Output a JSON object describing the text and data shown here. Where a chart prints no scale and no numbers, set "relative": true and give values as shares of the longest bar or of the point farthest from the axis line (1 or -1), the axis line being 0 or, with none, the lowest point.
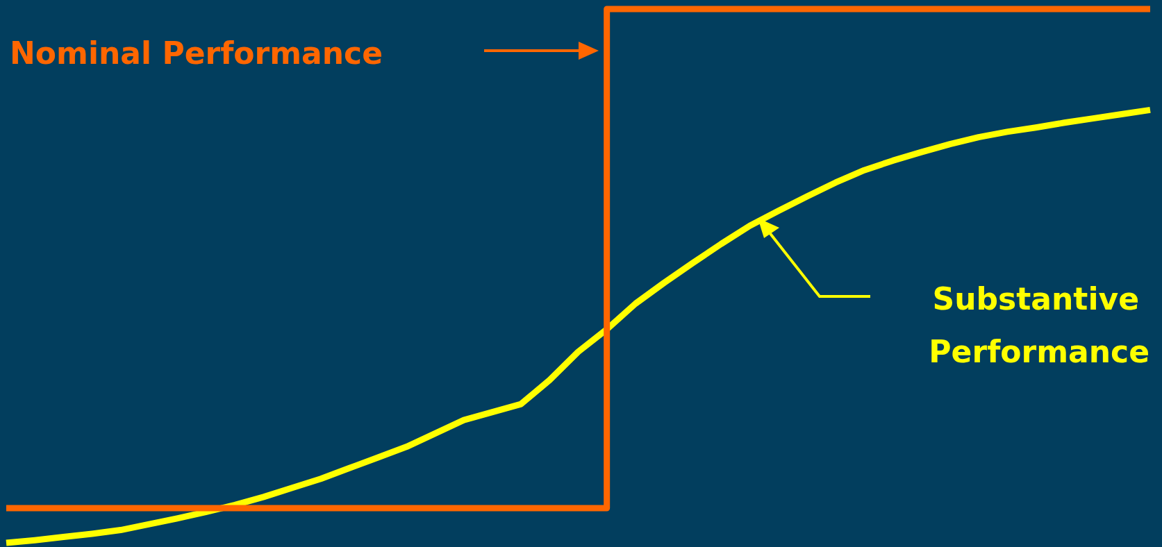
{
  "chart_data": {
    "type": "line",
    "relative": true,
    "legend": false,
    "marker": "none",
    "categories": [
      null,
      null,
      null,
      null,
      null,
      null,
      null,
      null,
      null,
      null,
      null,
      null,
      null,
      null,
      null,
      null,
      null,
      null,
      null,
      null,
      null,
      null,
      null,
      null,
      null,
      null,
      null,
      null,
      null,
      null,
      null,
      null,
      null,
      null,
      null,
      null,
      null,
      null,
      null,
      null,
      null
    ],
    "series": [
      {
        "name": "Nominal Performance",
        "type": "step",
        "color": "#ff6600",
        "values": [
          0.065,
          0.065,
          0.065,
          0.065,
          0.065,
          0.065,
          0.065,
          0.065,
          0.065,
          0.065,
          0.065,
          0.065,
          0.065,
          0.065,
          0.065,
          0.065,
          0.065,
          0.065,
          0.065,
          0.065,
          0.065,
          0.065,
          1,
          1,
          1,
          1,
          1,
          1,
          1,
          1,
          1,
          1,
          1,
          1,
          1,
          1,
          1,
          1,
          1,
          1,
          1
        ]
      },
      {
        "name": "Substantive Performance",
        "color": "#ffff00",
        "values": [
          0,
          0.005,
          0.011,
          0.017,
          0.024,
          0.035,
          0.046,
          0.058,
          0.071,
          0.086,
          0.103,
          0.12,
          0.14,
          0.16,
          0.18,
          0.205,
          0.23,
          0.245,
          0.26,
          0.305,
          0.358,
          0.4,
          0.448,
          0.487,
          0.524,
          0.56,
          0.594,
          0.622,
          0.649,
          0.675,
          0.698,
          0.716,
          0.732,
          0.747,
          0.76,
          0.77,
          0.778,
          0.787,
          0.795,
          0.803,
          0.811
        ]
      }
    ]
  }
}
